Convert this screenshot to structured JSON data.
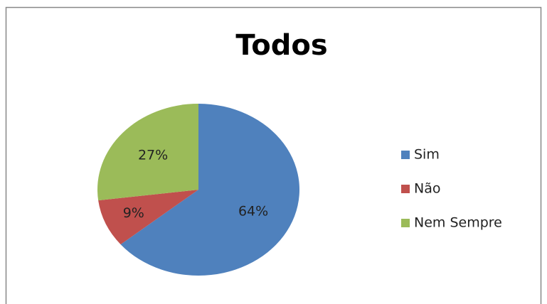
{
  "chart_data": {
    "type": "pie",
    "title": "Todos",
    "categories": [
      "Sim",
      "Não",
      "Nem Sempre"
    ],
    "values": [
      64,
      9,
      27
    ],
    "value_labels": [
      "64%",
      "9%",
      "27%"
    ],
    "colors": [
      "#4f81bd",
      "#c0504d",
      "#9bbb59"
    ],
    "legend": "right"
  }
}
